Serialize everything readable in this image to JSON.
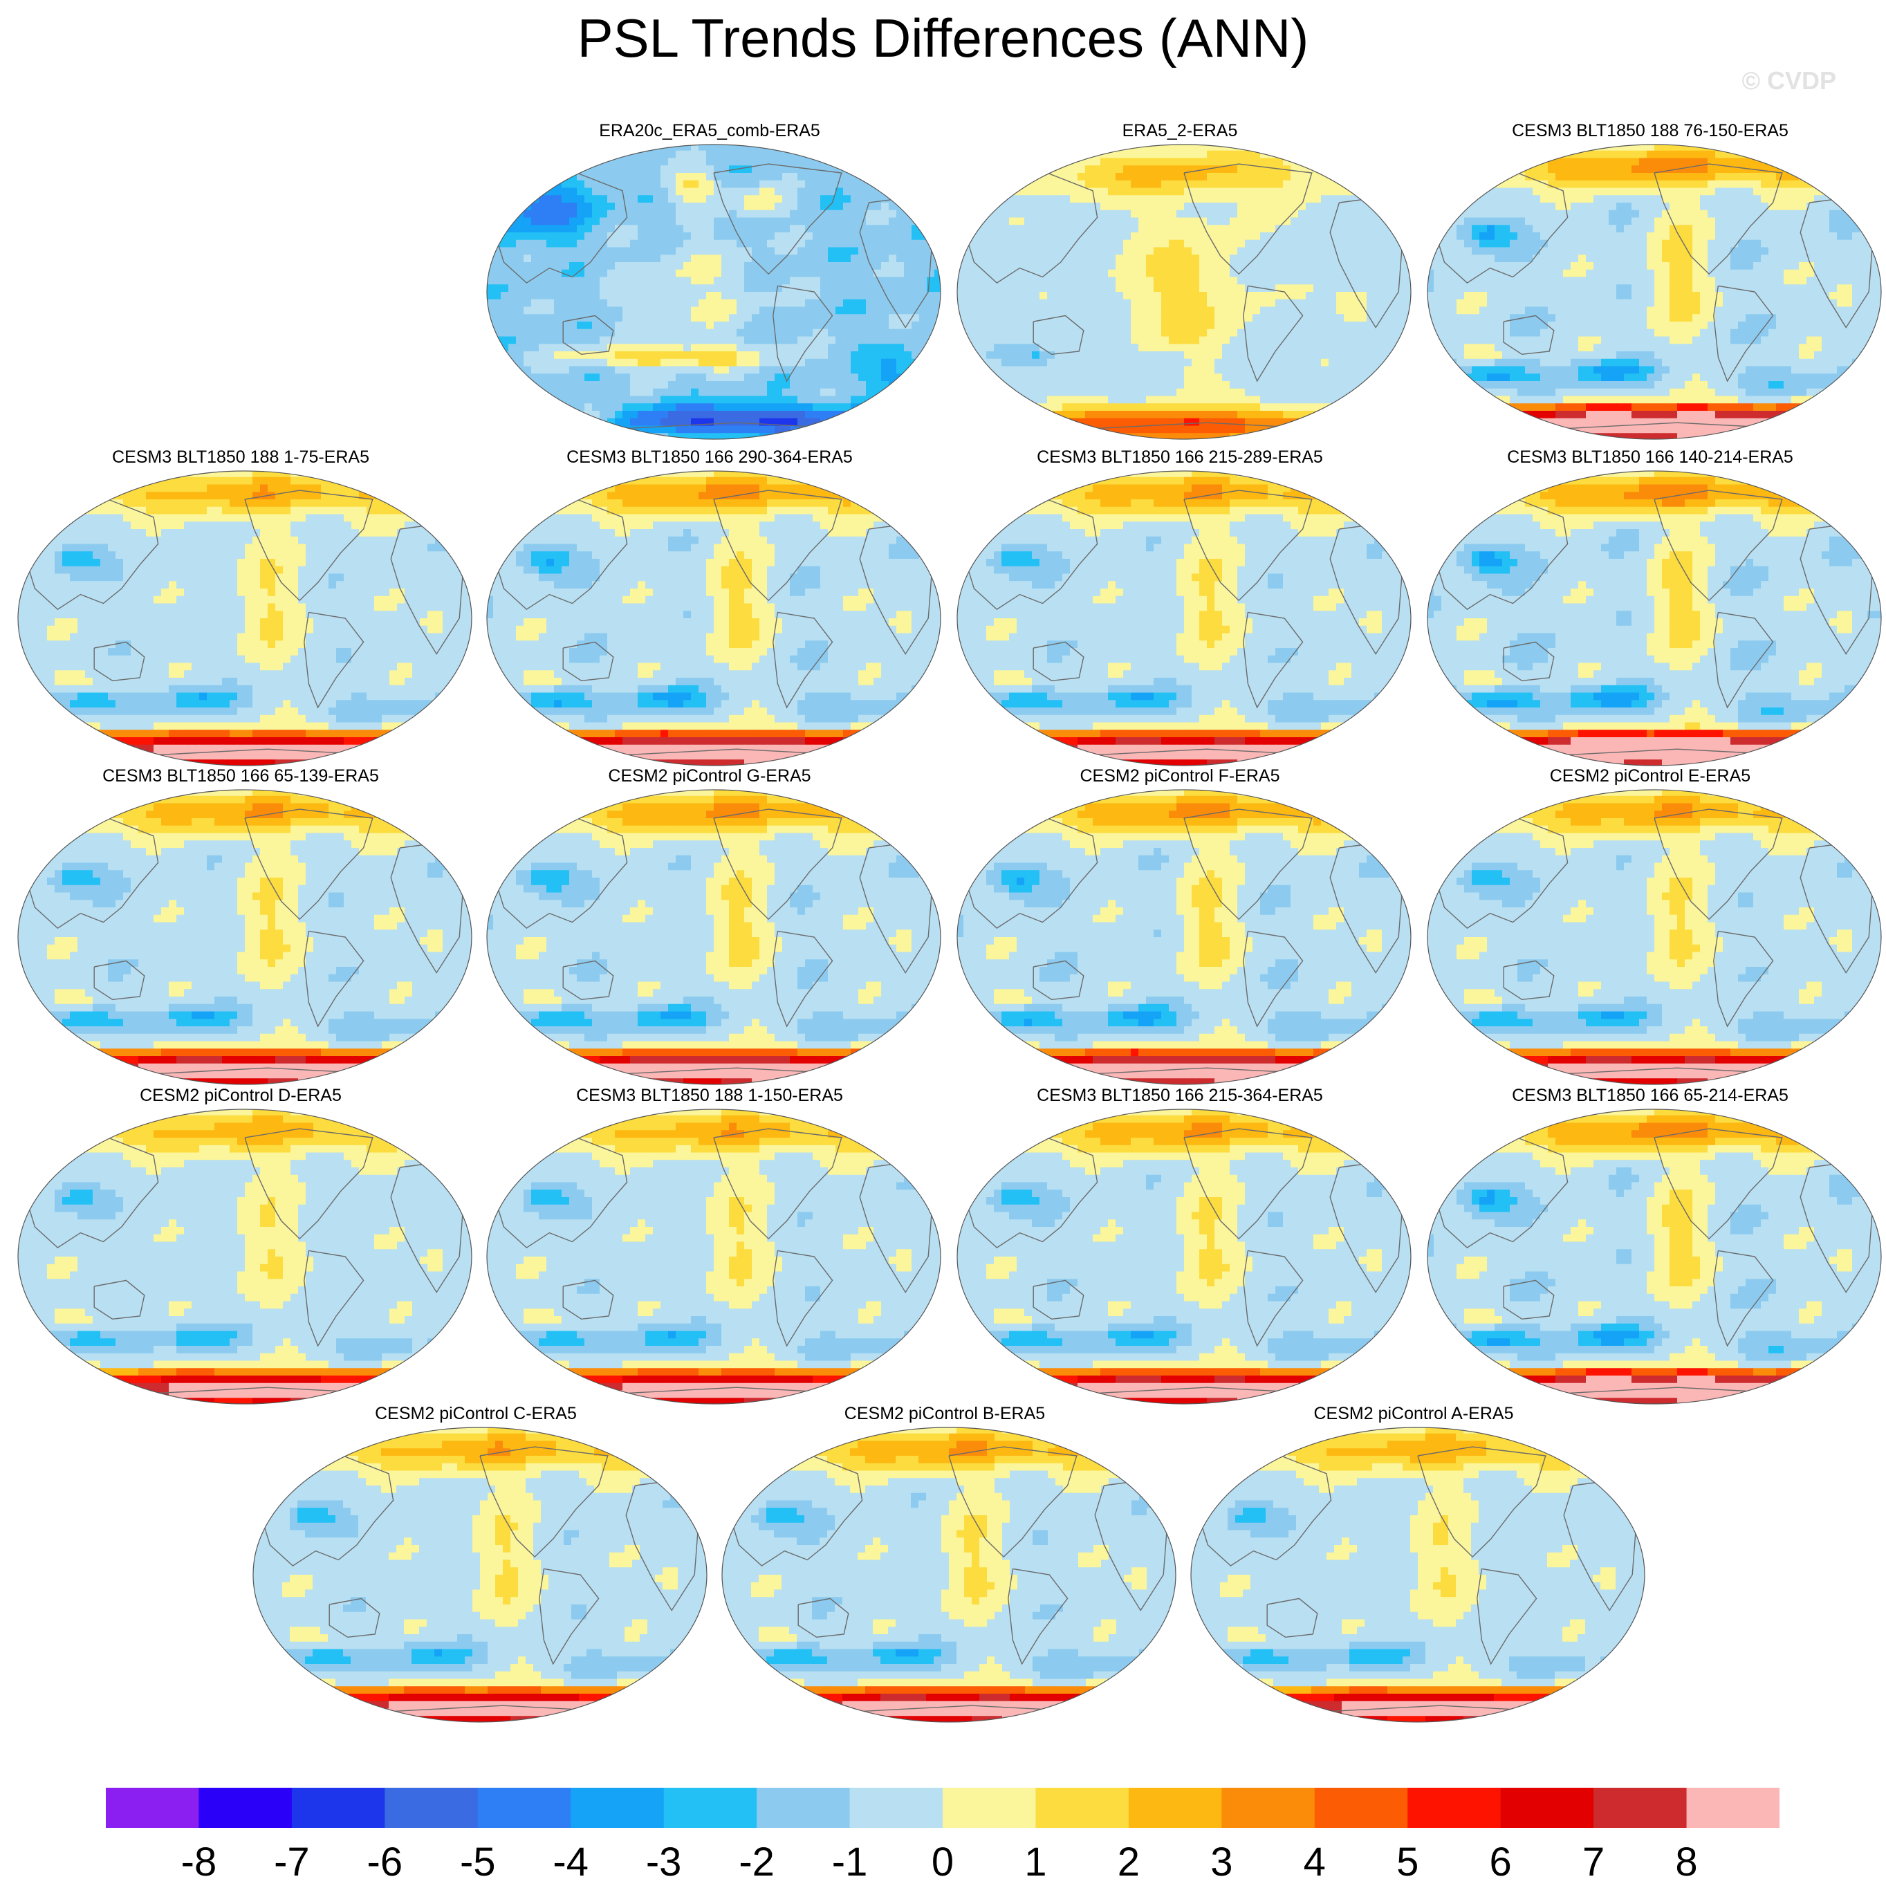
{
  "figure": {
    "title": "PSL Trends Differences (ANN)",
    "watermark": "© CVDP"
  },
  "chart_data": {
    "type": "heatmap",
    "title": "PSL Trends Differences (ANN)",
    "projection": "global map (Robinson-like), Pacific-centered",
    "variable": "PSL",
    "season": "ANN",
    "panels": [
      {
        "label": "ERA20c_ERA5_comb-ERA5",
        "pattern": "era20c"
      },
      {
        "label": "ERA5_2-ERA5",
        "pattern": "era5"
      },
      {
        "label": "CESM3 BLT1850 188 76-150-ERA5",
        "pattern": "model",
        "strength": 1.15
      },
      {
        "label": "CESM3 BLT1850 188 1-75-ERA5",
        "pattern": "model",
        "strength": 0.95
      },
      {
        "label": "CESM3 BLT1850 166 290-364-ERA5",
        "pattern": "model",
        "strength": 1.1
      },
      {
        "label": "CESM3 BLT1850 166 215-289-ERA5",
        "pattern": "model",
        "strength": 1.0
      },
      {
        "label": "CESM3 BLT1850 166 140-214-ERA5",
        "pattern": "model",
        "strength": 1.2
      },
      {
        "label": "CESM3 BLT1850 166 65-139-ERA5",
        "pattern": "model",
        "strength": 1.0
      },
      {
        "label": "CESM2 piControl G-ERA5",
        "pattern": "model",
        "strength": 1.05
      },
      {
        "label": "CESM2 piControl F-ERA5",
        "pattern": "model",
        "strength": 1.1
      },
      {
        "label": "CESM2 piControl E-ERA5",
        "pattern": "model",
        "strength": 1.0
      },
      {
        "label": "CESM2 piControl D-ERA5",
        "pattern": "model",
        "strength": 0.9
      },
      {
        "label": "CESM3 BLT1850 188 1-150-ERA5",
        "pattern": "model",
        "strength": 0.95
      },
      {
        "label": "CESM3 BLT1850 166 215-364-ERA5",
        "pattern": "model",
        "strength": 1.0
      },
      {
        "label": "CESM3 BLT1850 166 65-214-ERA5",
        "pattern": "model",
        "strength": 1.15
      },
      {
        "label": "CESM2 piControl C-ERA5",
        "pattern": "model",
        "strength": 0.95
      },
      {
        "label": "CESM2 piControl B-ERA5",
        "pattern": "model",
        "strength": 1.0
      },
      {
        "label": "CESM2 piControl A-ERA5",
        "pattern": "model",
        "strength": 0.9
      }
    ],
    "colorbar": {
      "labels": [
        "-8",
        "-7",
        "-6",
        "-5",
        "-4",
        "-3",
        "-2",
        "-1",
        "0",
        "1",
        "2",
        "3",
        "4",
        "5",
        "6",
        "7",
        "8"
      ],
      "levels": [
        -8,
        -7,
        -6,
        -5,
        -4,
        -3,
        -2,
        -1,
        0,
        1,
        2,
        3,
        4,
        5,
        6,
        7,
        8
      ],
      "colors": [
        "#8b1ef1",
        "#2a00f8",
        "#1e36eb",
        "#3a6be2",
        "#2e7ff5",
        "#14a3f7",
        "#22c0f5",
        "#8ccbef",
        "#b8dff2",
        "#fbf59b",
        "#fcdc3e",
        "#fdb812",
        "#fb8c0a",
        "#fb5c04",
        "#fd1300",
        "#e20000",
        "#cd2b2e",
        "#fbb6b6"
      ]
    }
  }
}
